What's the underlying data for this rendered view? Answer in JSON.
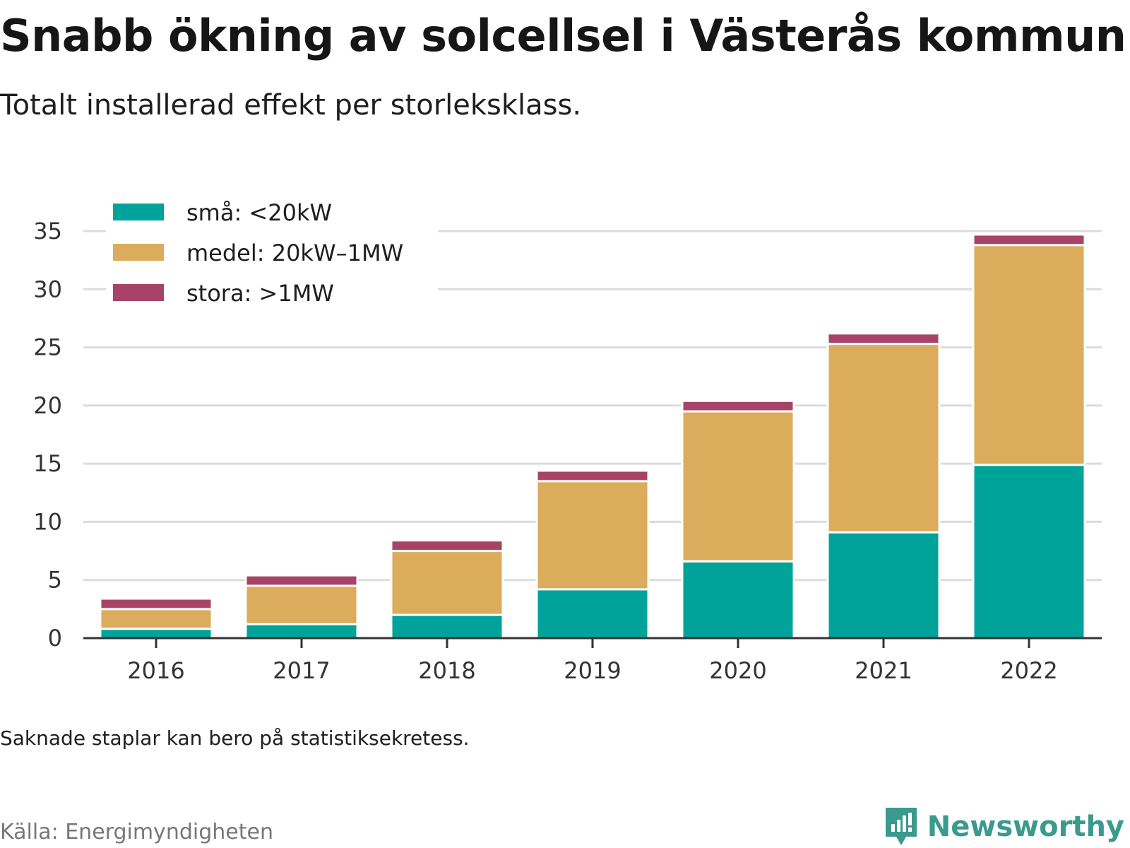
{
  "header": {
    "title": "Snabb ökning av solcellsel i Västerås kommun",
    "subtitle": "Totalt installerad effekt per storleksklass."
  },
  "footer": {
    "note": "Saknade staplar kan bero på statistiksekretess.",
    "source": "Källa: Energimyndigheten",
    "brand": "Newsworthy"
  },
  "colors": {
    "small": "#00a39a",
    "medium": "#dbac5c",
    "large": "#a84368",
    "grid": "#dcdcdc",
    "axis": "#333333",
    "brand": "#3a9a8e"
  },
  "icons": {
    "brand_logo": "bar-chart-speech-bubble-icon"
  },
  "chart_data": {
    "type": "bar",
    "stacked": true,
    "categories": [
      "2016",
      "2017",
      "2018",
      "2019",
      "2020",
      "2021",
      "2022"
    ],
    "series": [
      {
        "name": "små: <20kW",
        "color": "#00a39a",
        "values": [
          0.8,
          1.2,
          2.0,
          4.2,
          6.6,
          9.1,
          14.9
        ]
      },
      {
        "name": "medel: 20kW–1MW",
        "color": "#dbac5c",
        "values": [
          1.7,
          3.3,
          5.5,
          9.3,
          12.9,
          16.2,
          18.9
        ]
      },
      {
        "name": "stora: >1MW",
        "color": "#a84368",
        "values": [
          0.9,
          0.9,
          0.9,
          0.9,
          0.9,
          0.9,
          0.9
        ]
      }
    ],
    "yticks": [
      0,
      5,
      10,
      15,
      20,
      25,
      30,
      35
    ],
    "ylim": [
      0,
      35
    ],
    "grid": true,
    "legend_position": "top-left",
    "xlabel": "",
    "ylabel": ""
  }
}
